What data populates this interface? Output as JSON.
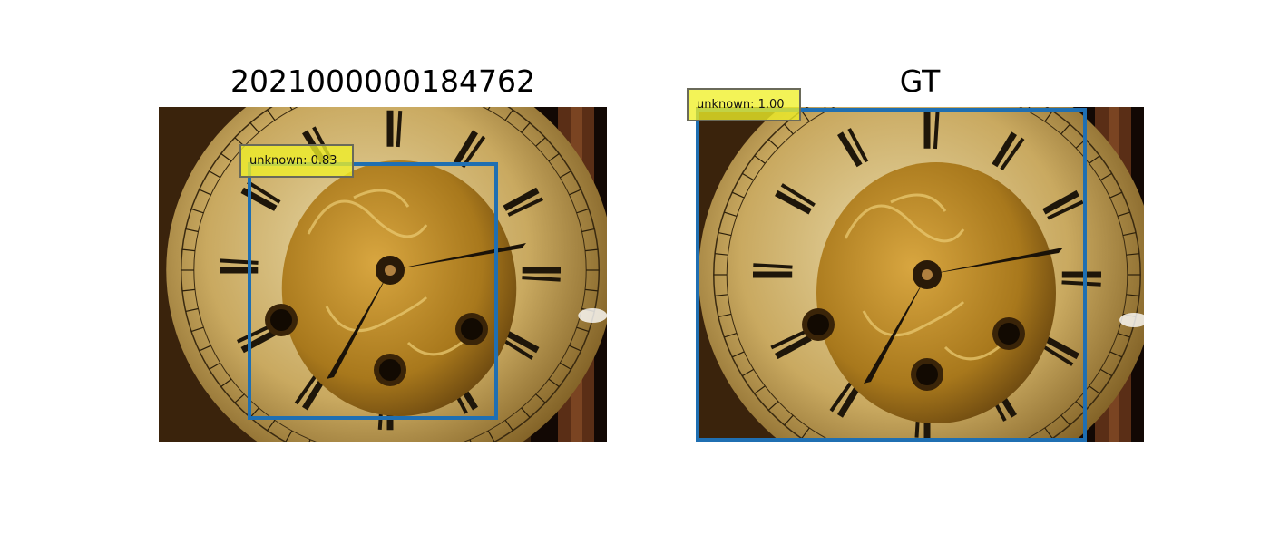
{
  "panels": {
    "left": {
      "title": "2021000000184762",
      "detection": {
        "label": "unknown: 0.83",
        "score": 0.83
      }
    },
    "right": {
      "title": "GT",
      "detection": {
        "label": "unknown: 1.00",
        "score": 1.0
      }
    }
  },
  "colors": {
    "box": "#1f6fb2",
    "label_bg": "#f0f028"
  }
}
